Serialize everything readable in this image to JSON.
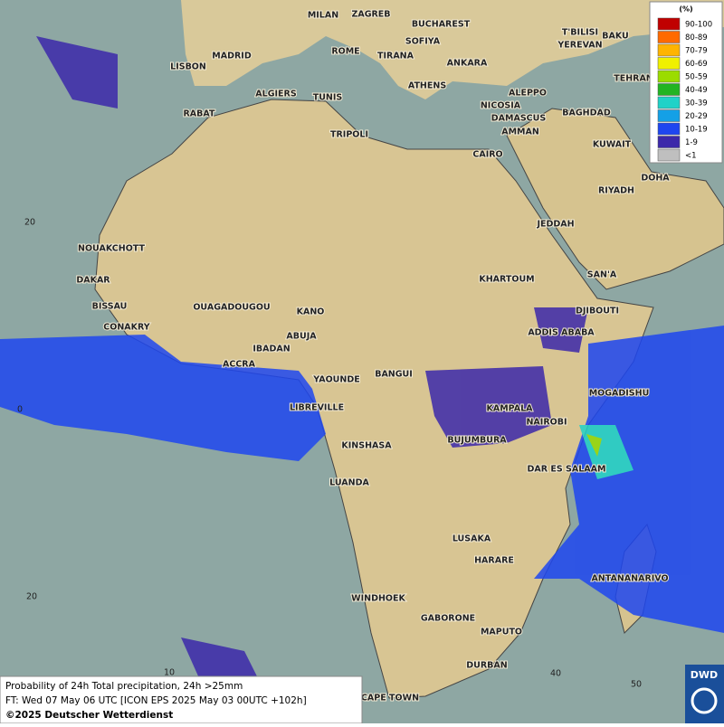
{
  "map": {
    "cities": [
      "MILAN",
      "ZAGREB",
      "BUCHAREST",
      "SOFIYA",
      "ROME",
      "TIRANA",
      "ANKARA",
      "LISBON",
      "MADRID",
      "T'BILISI",
      "YEREVAN",
      "BAKU",
      "TEHRAN",
      "ATHENS",
      "ALGIERS",
      "TUNIS",
      "ALEPPO",
      "RABAT",
      "NICOSIA",
      "DAMASCUS",
      "BAGHDAD",
      "AMMAN",
      "TRIPOLI",
      "KUWAIT",
      "CAIRO",
      "DOHA",
      "RIYADH",
      "JEDDAH",
      "NOUAKCHOTT",
      "SAN'A",
      "DAKAR",
      "KHARTOUM",
      "BISSAU",
      "OUAGADOUGOU",
      "KANO",
      "DJIBOUTI",
      "CONAKRY",
      "ABUJA",
      "ADDIS ABABA",
      "IBADAN",
      "ACCRA",
      "BANGUI",
      "YAOUNDE",
      "MOGADISHU",
      "LIBREVILLE",
      "KAMPALA",
      "NAIROBI",
      "BUJUMBURA",
      "KINSHASA",
      "DAR ES SALAAM",
      "LUANDA",
      "LUSAKA",
      "HARARE",
      "ANTANANARIVO",
      "WINDHOEK",
      "GABORONE",
      "MAPUTO",
      "DURBAN",
      "CAPE TOWN"
    ],
    "grid_labels": [
      "20",
      "0",
      "20",
      "10",
      "40",
      "50"
    ]
  },
  "legend": {
    "title": "(%)",
    "items": [
      {
        "label": "90-100",
        "color": "#c00000"
      },
      {
        "label": "80-89",
        "color": "#ff6a00"
      },
      {
        "label": "70-79",
        "color": "#ffb400"
      },
      {
        "label": "60-69",
        "color": "#f0f000"
      },
      {
        "label": "50-59",
        "color": "#9bdc00"
      },
      {
        "label": "40-49",
        "color": "#22b422"
      },
      {
        "label": "30-39",
        "color": "#20d2c8"
      },
      {
        "label": "20-29",
        "color": "#14a0e6"
      },
      {
        "label": "10-19",
        "color": "#1e46f0"
      },
      {
        "label": "1-9",
        "color": "#3c28aa"
      },
      {
        "label": "<1",
        "color": "#bfbfbf"
      }
    ]
  },
  "caption": {
    "line1": "Probability of 24h Total precipitation, 24h >25mm",
    "line2": "FT: Wed 07 May 06 UTC [ICON EPS 2025 May 03 00UTC +102h]",
    "line3": "©2025 Deutscher Wetterdienst"
  },
  "logo": "DWD"
}
